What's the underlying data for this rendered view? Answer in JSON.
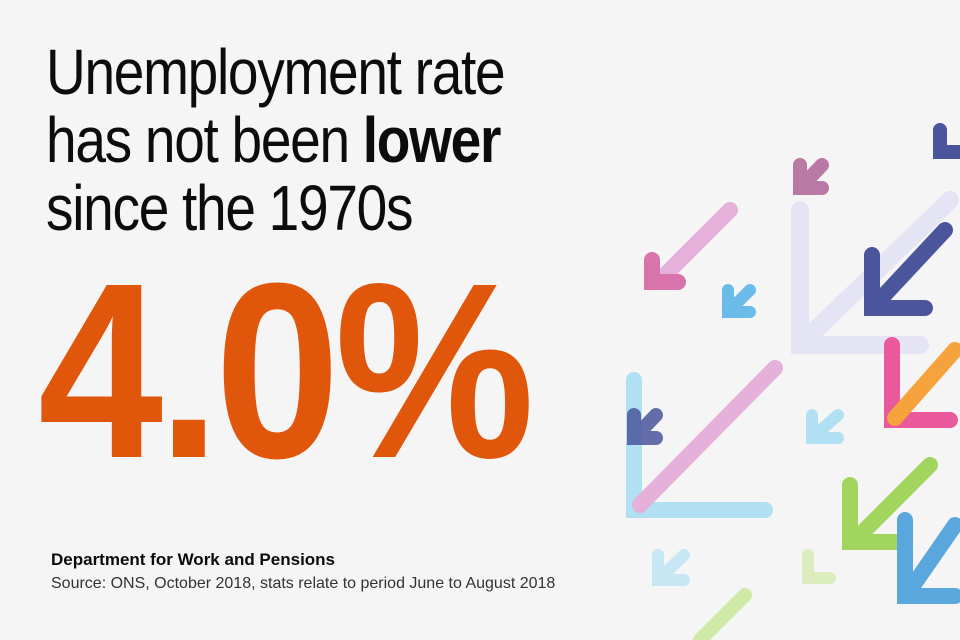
{
  "headline": {
    "line1": "Unemployment rate",
    "line2_prefix": "has not been ",
    "line2_bold": "lower",
    "line3": "since the 1970s"
  },
  "stat": {
    "value": "4.0%"
  },
  "footer": {
    "organisation": "Department for Work and Pensions",
    "source": "Source: ONS, October 2018, stats relate to period June to August 2018"
  },
  "colors": {
    "background": "#f5f5f5",
    "stat": "#e0560b",
    "text": "#0b0c0c",
    "arrow_palette": [
      "#d35d9f",
      "#e3a6d6",
      "#53b3e6",
      "#2d3a8c",
      "#94d044",
      "#f7941d",
      "#e83e8c",
      "#9b3f7f",
      "#d9d9f5"
    ]
  },
  "decoration": {
    "icon": "down-left-arrows-icon"
  }
}
